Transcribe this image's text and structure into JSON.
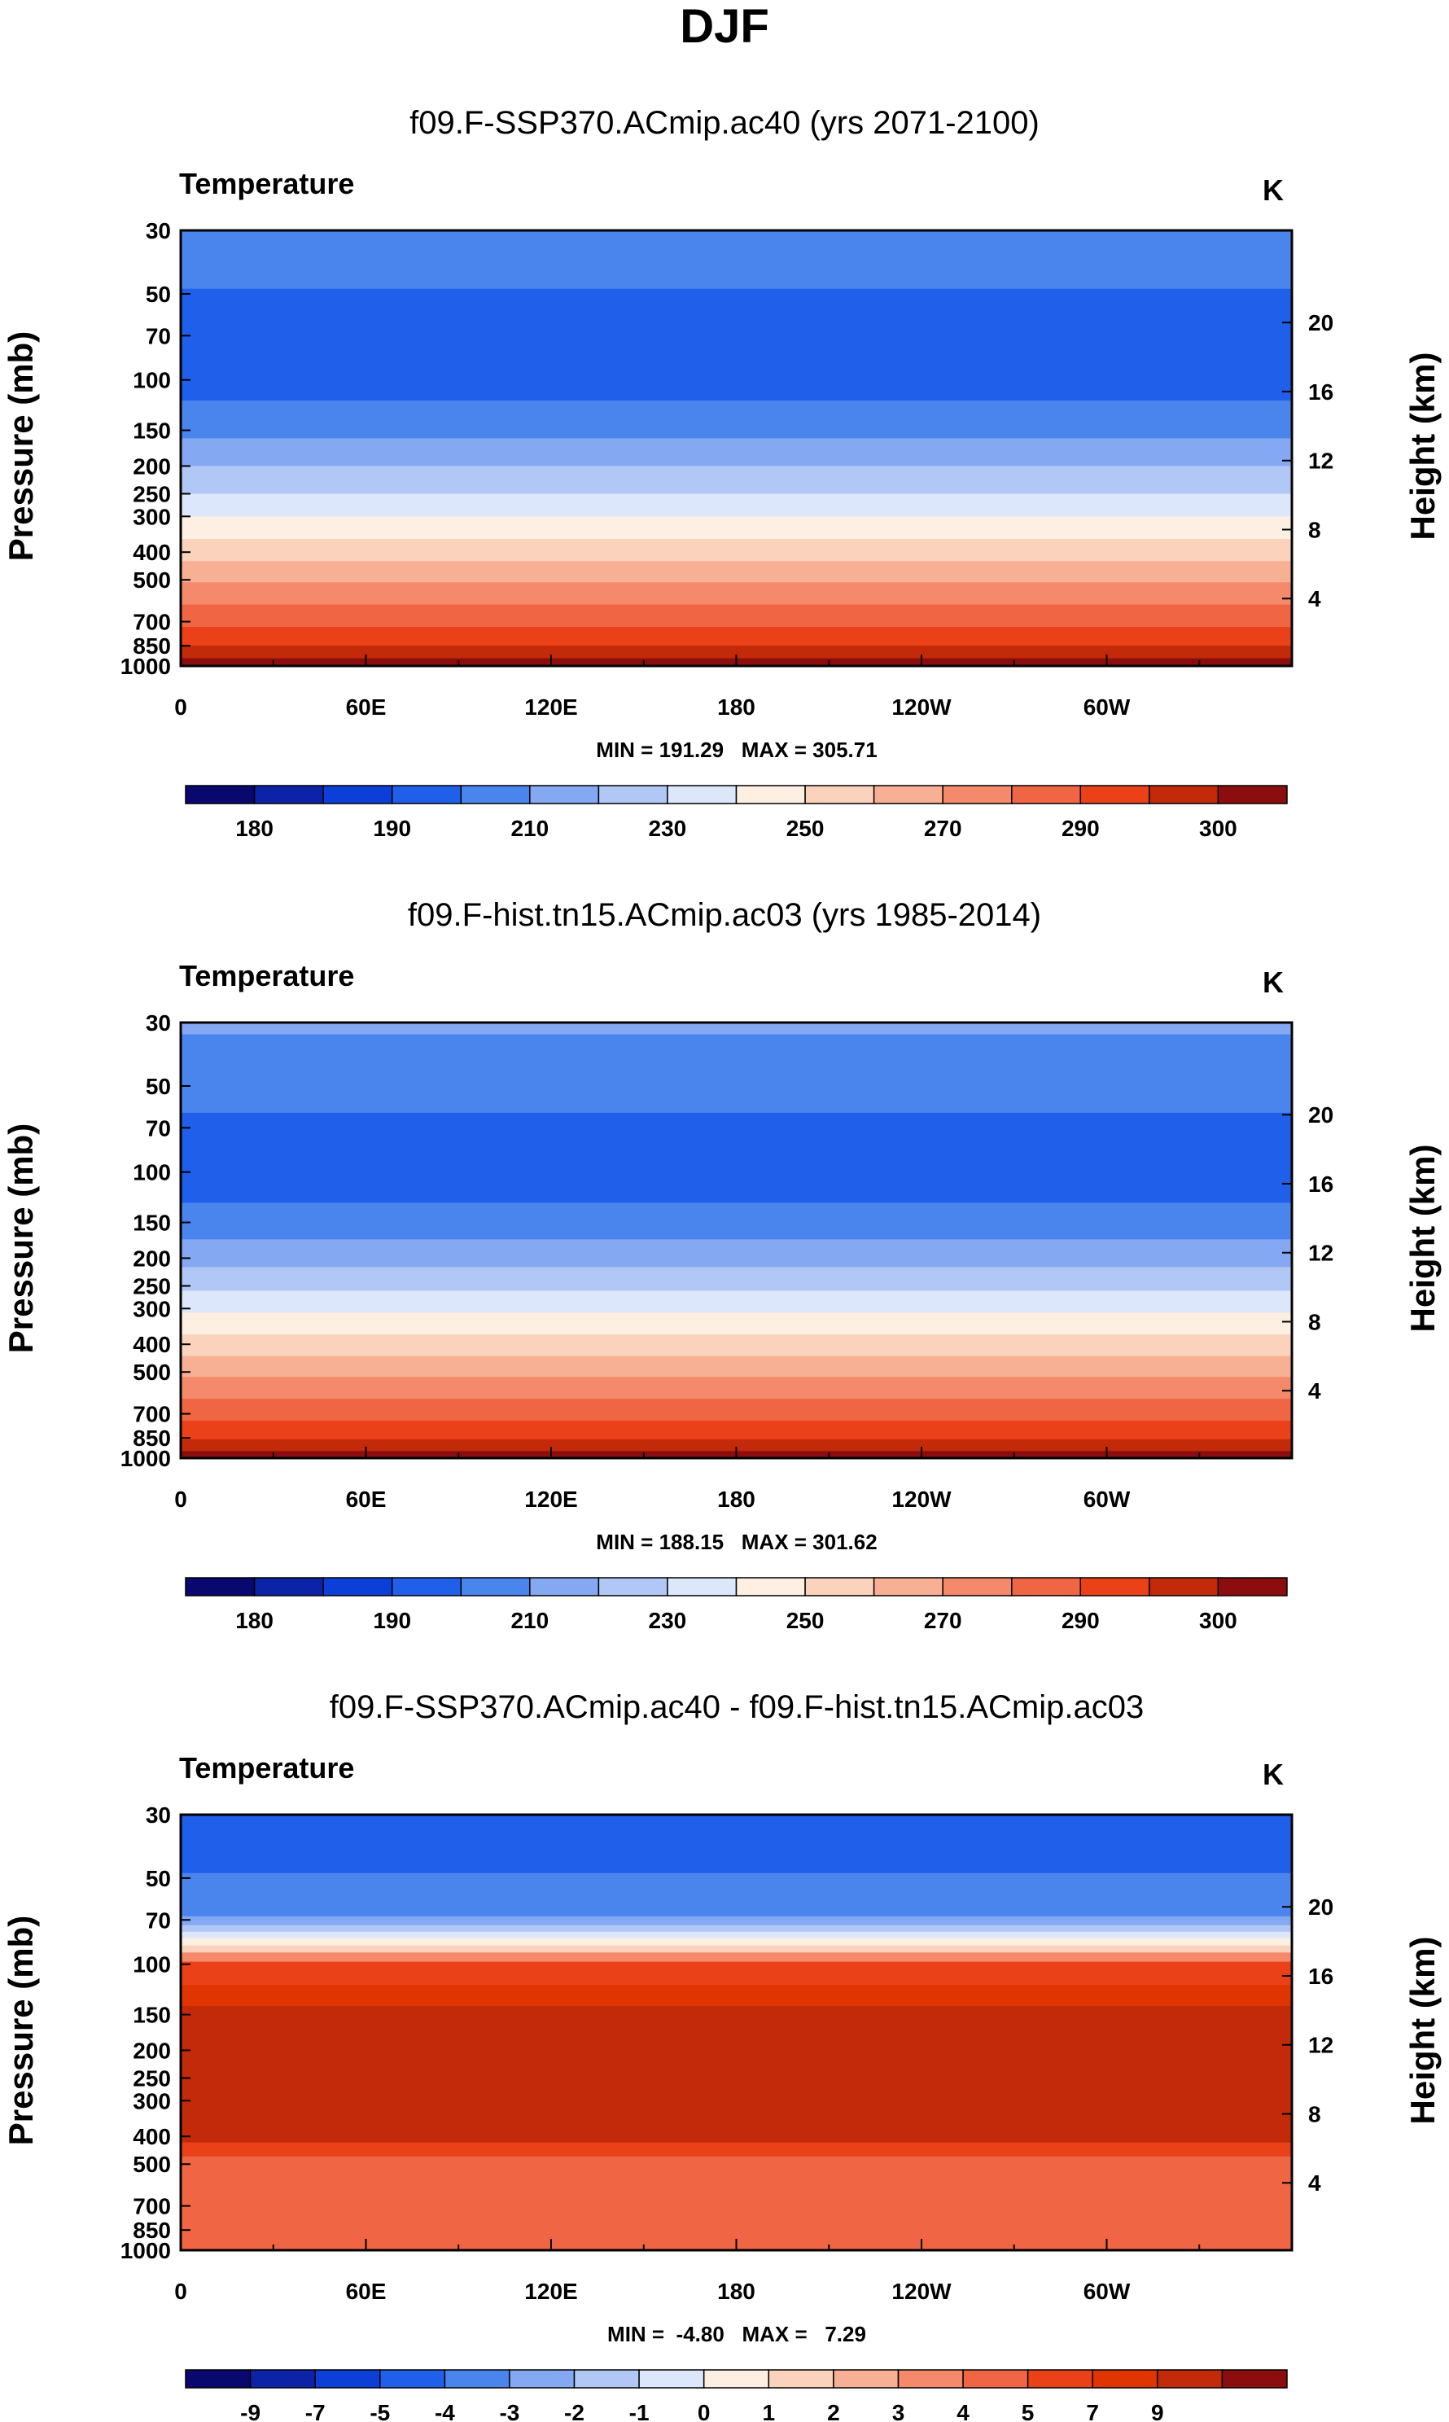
{
  "page": {
    "title": "DJF"
  },
  "colors": {
    "temp_levels": [
      "#08086e",
      "#0c23a8",
      "#0b3fd8",
      "#1f5fea",
      "#4a85ee",
      "#85a8f3",
      "#b1c8f7",
      "#dce7fb",
      "#fdefe2",
      "#fbd2bc",
      "#f8b094",
      "#f5896b",
      "#f06645",
      "#ea4118",
      "#c22a0a",
      "#8c0d0d"
    ],
    "diff_levels": [
      "#08086e",
      "#0c23a8",
      "#0b3fd8",
      "#1f5fea",
      "#4a85ee",
      "#85a8f3",
      "#b1c8f7",
      "#dce7fb",
      "#fdefe2",
      "#fbd2bc",
      "#f8b094",
      "#f5896b",
      "#f06645",
      "#ea4118",
      "#e03500",
      "#c22a0a",
      "#8c0d0d"
    ]
  },
  "chart_data": [
    {
      "type": "heatmap",
      "title": "f09.F-SSP370.ACmip.ac40 (yrs 2071-2100)",
      "variable": "Temperature",
      "units": "K",
      "xlabel": "",
      "ylabel": "Pressure (mb)",
      "ylabel_right": "Height (km)",
      "x_ticks": [
        "0",
        "60E",
        "120E",
        "180",
        "120W",
        "60W"
      ],
      "x_tick_values": [
        0,
        60,
        120,
        180,
        240,
        300
      ],
      "xlim": [
        0,
        360
      ],
      "y_ticks": [
        "30",
        "50",
        "70",
        "100",
        "150",
        "200",
        "250",
        "300",
        "400",
        "500",
        "700",
        "850",
        "1000"
      ],
      "y_tick_values": [
        30,
        50,
        70,
        100,
        150,
        200,
        250,
        300,
        400,
        500,
        700,
        850,
        1000
      ],
      "ylim": [
        30,
        1000
      ],
      "height_ticks": [
        "20",
        "16",
        "12",
        "8",
        "4"
      ],
      "height_tick_values": [
        20,
        16,
        12,
        8,
        4
      ],
      "stats": "MIN = 191.29   MAX = 305.71",
      "colorbar_labels": [
        "180",
        "190",
        "210",
        "230",
        "250",
        "270",
        "290",
        "300"
      ],
      "colorbar_label_slots": [
        1,
        3,
        5,
        7,
        9,
        11,
        13,
        15
      ],
      "bands_top_down": [
        {
          "p_bottom": 48,
          "level": 4
        },
        {
          "p_bottom": 118,
          "level": 3
        },
        {
          "p_bottom": 160,
          "level": 4
        },
        {
          "p_bottom": 200,
          "level": 5
        },
        {
          "p_bottom": 250,
          "level": 6
        },
        {
          "p_bottom": 300,
          "level": 7
        },
        {
          "p_bottom": 360,
          "level": 8
        },
        {
          "p_bottom": 430,
          "level": 9
        },
        {
          "p_bottom": 510,
          "level": 10
        },
        {
          "p_bottom": 610,
          "level": 11
        },
        {
          "p_bottom": 730,
          "level": 12
        },
        {
          "p_bottom": 850,
          "level": 13
        },
        {
          "p_bottom": 940,
          "level": 14
        },
        {
          "p_bottom": 1000,
          "level": 15
        }
      ]
    },
    {
      "type": "heatmap",
      "title": "f09.F-hist.tn15.ACmip.ac03 (yrs 1985-2014)",
      "variable": "Temperature",
      "units": "K",
      "xlabel": "",
      "ylabel": "Pressure (mb)",
      "ylabel_right": "Height (km)",
      "x_ticks": [
        "0",
        "60E",
        "120E",
        "180",
        "120W",
        "60W"
      ],
      "x_tick_values": [
        0,
        60,
        120,
        180,
        240,
        300
      ],
      "xlim": [
        0,
        360
      ],
      "y_ticks": [
        "30",
        "50",
        "70",
        "100",
        "150",
        "200",
        "250",
        "300",
        "400",
        "500",
        "700",
        "850",
        "1000"
      ],
      "y_tick_values": [
        30,
        50,
        70,
        100,
        150,
        200,
        250,
        300,
        400,
        500,
        700,
        850,
        1000
      ],
      "ylim": [
        30,
        1000
      ],
      "height_ticks": [
        "20",
        "16",
        "12",
        "8",
        "4"
      ],
      "height_tick_values": [
        20,
        16,
        12,
        8,
        4
      ],
      "stats": "MIN = 188.15   MAX = 301.62",
      "colorbar_labels": [
        "180",
        "190",
        "210",
        "230",
        "250",
        "270",
        "290",
        "300"
      ],
      "colorbar_label_slots": [
        1,
        3,
        5,
        7,
        9,
        11,
        13,
        15
      ],
      "bands_top_down": [
        {
          "p_bottom": 33,
          "level": 5
        },
        {
          "p_bottom": 62,
          "level": 4
        },
        {
          "p_bottom": 128,
          "level": 3
        },
        {
          "p_bottom": 172,
          "level": 4
        },
        {
          "p_bottom": 215,
          "level": 5
        },
        {
          "p_bottom": 260,
          "level": 6
        },
        {
          "p_bottom": 310,
          "level": 7
        },
        {
          "p_bottom": 370,
          "level": 8
        },
        {
          "p_bottom": 440,
          "level": 9
        },
        {
          "p_bottom": 520,
          "level": 10
        },
        {
          "p_bottom": 620,
          "level": 11
        },
        {
          "p_bottom": 740,
          "level": 12
        },
        {
          "p_bottom": 860,
          "level": 13
        },
        {
          "p_bottom": 945,
          "level": 14
        },
        {
          "p_bottom": 1000,
          "level": 15
        }
      ]
    },
    {
      "type": "heatmap",
      "title": "f09.F-SSP370.ACmip.ac40 - f09.F-hist.tn15.ACmip.ac03",
      "variable": "Temperature",
      "units": "K",
      "xlabel": "",
      "ylabel": "Pressure (mb)",
      "ylabel_right": "Height (km)",
      "x_ticks": [
        "0",
        "60E",
        "120E",
        "180",
        "120W",
        "60W"
      ],
      "x_tick_values": [
        0,
        60,
        120,
        180,
        240,
        300
      ],
      "xlim": [
        0,
        360
      ],
      "y_ticks": [
        "30",
        "50",
        "70",
        "100",
        "150",
        "200",
        "250",
        "300",
        "400",
        "500",
        "700",
        "850",
        "1000"
      ],
      "y_tick_values": [
        30,
        50,
        70,
        100,
        150,
        200,
        250,
        300,
        400,
        500,
        700,
        850,
        1000
      ],
      "ylim": [
        30,
        1000
      ],
      "height_ticks": [
        "20",
        "16",
        "12",
        "8",
        "4"
      ],
      "height_tick_values": [
        20,
        16,
        12,
        8,
        4
      ],
      "stats": "MIN =  -4.80   MAX =   7.29",
      "colorbar_labels": [
        "-9",
        "-7",
        "-5",
        "-4",
        "-3",
        "-2",
        "-1",
        "0",
        "1",
        "2",
        "3",
        "4",
        "5",
        "7",
        "9"
      ],
      "colorbar_label_slots": [
        1,
        2,
        3,
        4,
        5,
        6,
        7,
        8,
        9,
        10,
        11,
        12,
        13,
        14,
        15
      ],
      "bands_top_down": [
        {
          "p_bottom": 48,
          "level": 3
        },
        {
          "p_bottom": 68,
          "level": 4
        },
        {
          "p_bottom": 73,
          "level": 5
        },
        {
          "p_bottom": 77,
          "level": 6
        },
        {
          "p_bottom": 81,
          "level": 7
        },
        {
          "p_bottom": 86,
          "level": 8
        },
        {
          "p_bottom": 91,
          "level": 9
        },
        {
          "p_bottom": 98,
          "level": 11
        },
        {
          "p_bottom": 118,
          "level": 13
        },
        {
          "p_bottom": 140,
          "level": 14
        },
        {
          "p_bottom": 420,
          "level": 15
        },
        {
          "p_bottom": 470,
          "level": 13
        },
        {
          "p_bottom": 1000,
          "level": 12
        }
      ]
    }
  ]
}
